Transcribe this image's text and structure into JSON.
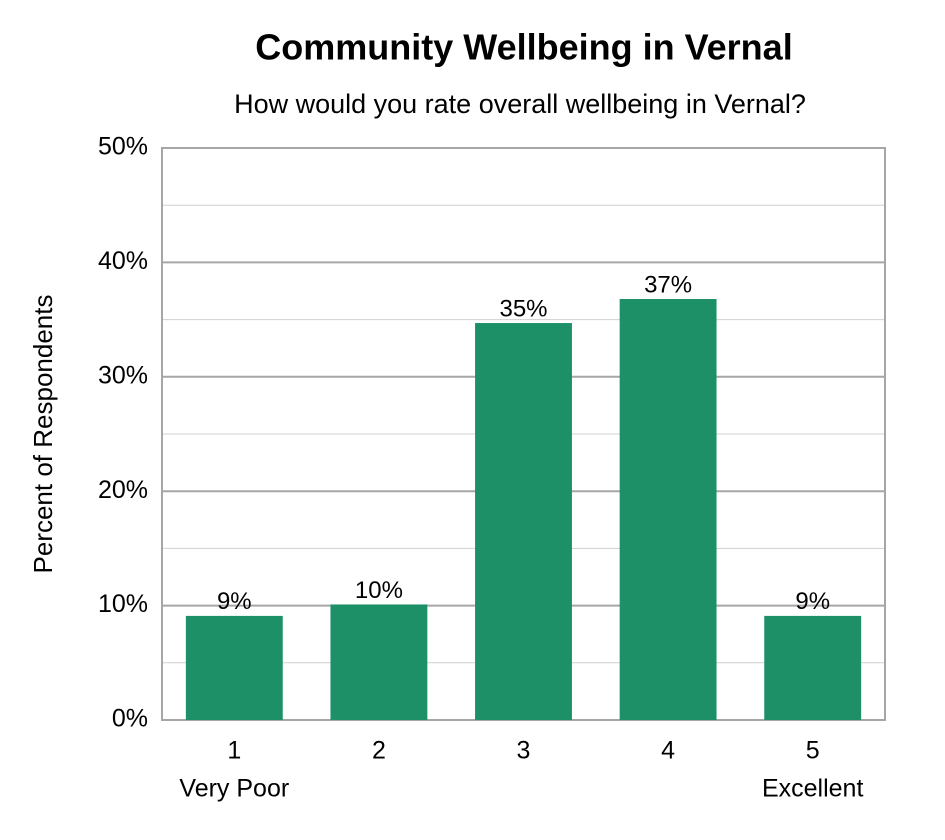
{
  "chart_data": {
    "type": "bar",
    "title": "Community Wellbeing in Vernal",
    "subtitle": "How would you rate overall wellbeing in Vernal?",
    "y_label": "Percent of Respondents",
    "categories": [
      "1",
      "2",
      "3",
      "4",
      "5"
    ],
    "category_sublabels": [
      "Very Poor",
      null,
      null,
      null,
      "Excellent"
    ],
    "values": [
      9.1,
      10.1,
      34.7,
      36.8,
      9.1
    ],
    "value_labels": [
      "9%",
      "10%",
      "35%",
      "37%",
      "9%"
    ],
    "color": "#1e9068",
    "ylim": [
      0,
      50
    ],
    "yticks": [
      {
        "value": 0,
        "label": "0%"
      },
      {
        "value": 10,
        "label": "10%"
      },
      {
        "value": 20,
        "label": "20%"
      },
      {
        "value": 30,
        "label": "30%"
      },
      {
        "value": 40,
        "label": "40%"
      },
      {
        "value": 50,
        "label": "50%"
      }
    ],
    "minor_yticks": [
      5,
      15,
      25,
      35,
      45
    ],
    "grid": true
  }
}
